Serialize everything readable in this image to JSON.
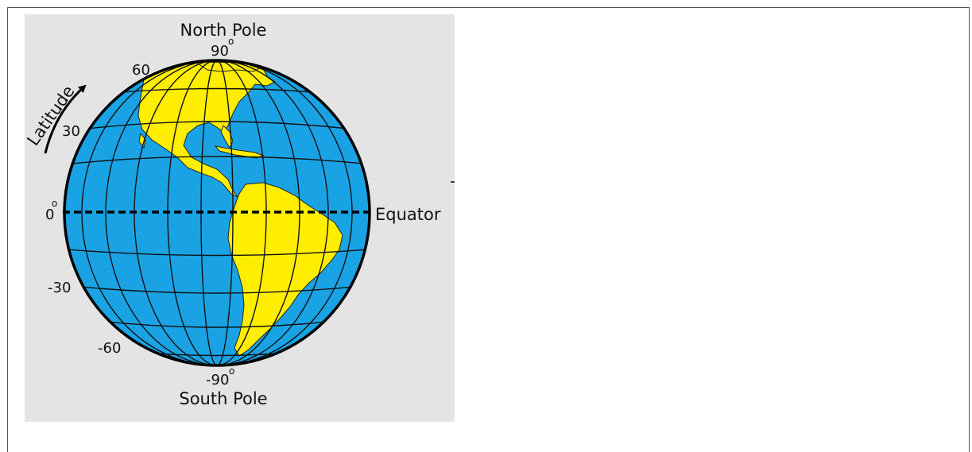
{
  "diagram": {
    "north_pole_label": "North Pole",
    "south_pole_label": "South Pole",
    "equator_label": "Equator",
    "latitude_label": "Latitude",
    "degree_symbol": "o",
    "lat_labels": {
      "p90": "90",
      "p60": "60",
      "p30": "30",
      "zero": "0",
      "m30": "-30",
      "m60": "-60",
      "m90": "-90"
    },
    "colors": {
      "ocean": "#1aa3e4",
      "land": "#ffee00",
      "grid": "#111111",
      "background": "#e4e4e4"
    }
  }
}
